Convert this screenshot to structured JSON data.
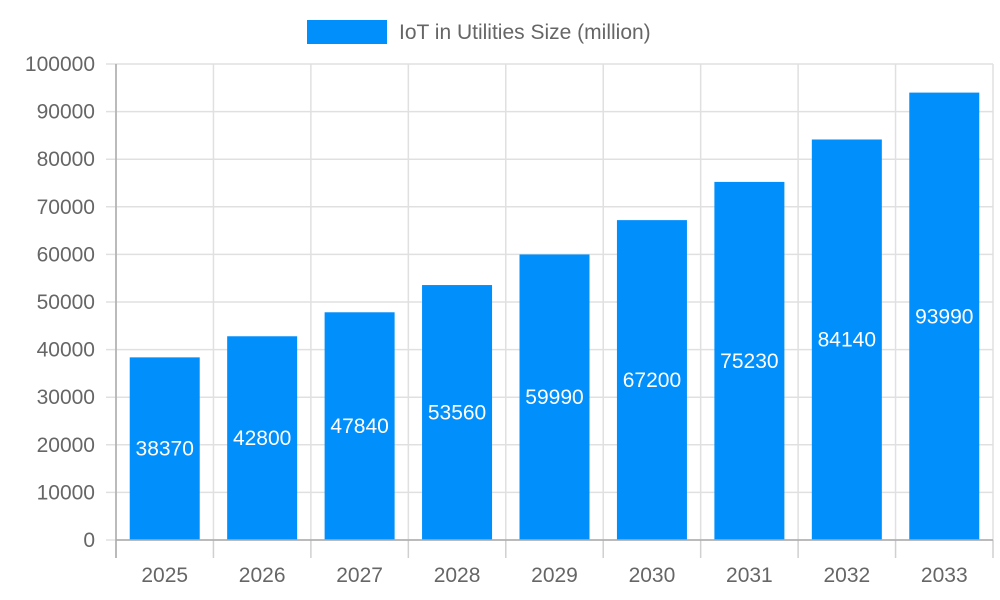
{
  "chart_data": {
    "type": "bar",
    "categories": [
      "2025",
      "2026",
      "2027",
      "2028",
      "2029",
      "2030",
      "2031",
      "2032",
      "2033"
    ],
    "series": [
      {
        "name": "IoT in Utilities Size (million)",
        "values": [
          38370,
          42800,
          47840,
          53560,
          59990,
          67200,
          75230,
          84140,
          93990
        ],
        "color": "#008ffb"
      }
    ],
    "ylim": [
      0,
      100000
    ],
    "yticks": [
      0,
      10000,
      20000,
      30000,
      40000,
      50000,
      60000,
      70000,
      80000,
      90000,
      100000
    ],
    "grid": true,
    "legend_position": "top",
    "data_labels": true,
    "xlabel": "",
    "ylabel": ""
  }
}
